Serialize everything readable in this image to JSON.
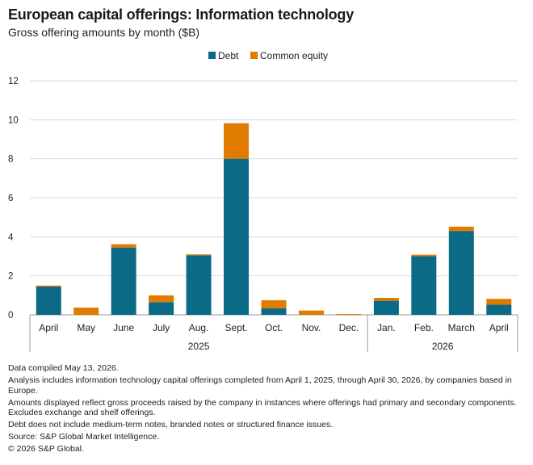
{
  "title": "European capital offerings: Information technology",
  "subtitle": "Gross offering amounts by month ($B)",
  "chart_data": {
    "type": "bar",
    "stacked": true,
    "categories": [
      "April",
      "May",
      "June",
      "July",
      "Aug.",
      "Sept.",
      "Oct.",
      "Nov.",
      "Dec.",
      "Jan.",
      "Feb.",
      "March",
      "April"
    ],
    "groups": [
      {
        "label": "2025",
        "categories": [
          "April",
          "May",
          "June",
          "July",
          "Aug.",
          "Sept.",
          "Oct.",
          "Nov.",
          "Dec."
        ]
      },
      {
        "label": "2026",
        "categories": [
          "Jan.",
          "Feb.",
          "March",
          "April"
        ]
      }
    ],
    "series": [
      {
        "name": "Debt",
        "color": "#0b6a86",
        "values": [
          1.45,
          0.0,
          3.45,
          0.65,
          3.05,
          8.0,
          0.33,
          0.0,
          0.0,
          0.72,
          3.0,
          4.3,
          0.52
        ]
      },
      {
        "name": "Common equity",
        "color": "#e07b00",
        "values": [
          0.05,
          0.37,
          0.17,
          0.35,
          0.05,
          1.82,
          0.42,
          0.22,
          0.04,
          0.15,
          0.08,
          0.22,
          0.3
        ]
      }
    ],
    "ylim": [
      0,
      12
    ],
    "yticks": [
      0,
      2,
      4,
      6,
      8,
      10,
      12
    ],
    "grid": true,
    "legend": "top-center"
  },
  "notes": [
    "Data compiled May 13, 2026.",
    "Analysis includes information technology capital offerings completed from April 1, 2025, through April 30, 2026, by companies based in Europe.",
    "Amounts displayed reflect gross proceeds raised by the company in instances where offerings had primary and secondary components. Excludes exchange and shelf offerings.",
    "Debt does not include medium-term notes, branded notes or structured finance issues.",
    "Source: S&P Global Market Intelligence.",
    "© 2026 S&P Global."
  ]
}
